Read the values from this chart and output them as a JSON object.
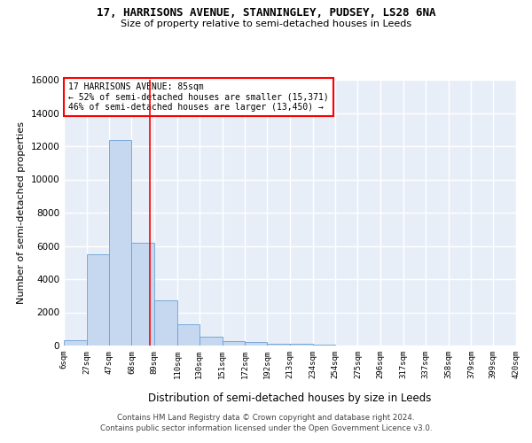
{
  "title_line1": "17, HARRISONS AVENUE, STANNINGLEY, PUDSEY, LS28 6NA",
  "title_line2": "Size of property relative to semi-detached houses in Leeds",
  "xlabel": "Distribution of semi-detached houses by size in Leeds",
  "ylabel": "Number of semi-detached properties",
  "footer_line1": "Contains HM Land Registry data © Crown copyright and database right 2024.",
  "footer_line2": "Contains public sector information licensed under the Open Government Licence v3.0.",
  "annotation_title": "17 HARRISONS AVENUE: 85sqm",
  "annotation_line1": "← 52% of semi-detached houses are smaller (15,371)",
  "annotation_line2": "46% of semi-detached houses are larger (13,450) →",
  "bar_edges": [
    6,
    27,
    47,
    68,
    89,
    110,
    130,
    151,
    172,
    192,
    213,
    234,
    254,
    275,
    296,
    317,
    337,
    358,
    379,
    399,
    420
  ],
  "bar_values": [
    300,
    5500,
    12400,
    6200,
    2700,
    1300,
    550,
    280,
    200,
    130,
    100,
    80,
    0,
    0,
    0,
    0,
    0,
    0,
    0,
    0
  ],
  "bar_color": "#c5d8f0",
  "bar_edge_color": "#6a9fd4",
  "property_line_x": 85,
  "ylim": [
    0,
    16000
  ],
  "yticks": [
    0,
    2000,
    4000,
    6000,
    8000,
    10000,
    12000,
    14000,
    16000
  ],
  "bg_color": "#e8eef8",
  "grid_color": "#ffffff",
  "tick_labels": [
    "6sqm",
    "27sqm",
    "47sqm",
    "68sqm",
    "89sqm",
    "110sqm",
    "130sqm",
    "151sqm",
    "172sqm",
    "192sqm",
    "213sqm",
    "234sqm",
    "254sqm",
    "275sqm",
    "296sqm",
    "317sqm",
    "337sqm",
    "358sqm",
    "379sqm",
    "399sqm",
    "420sqm"
  ]
}
